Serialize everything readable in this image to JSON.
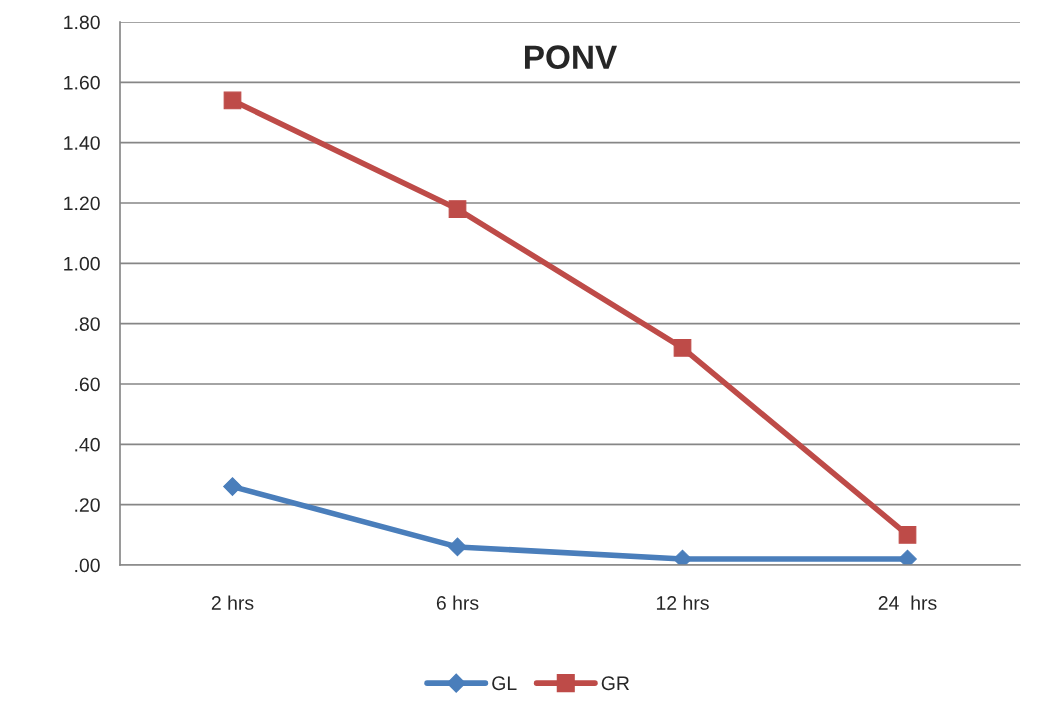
{
  "chart_data": {
    "type": "line",
    "title": "PONV",
    "categories": [
      "2 hrs",
      "6 hrs",
      "12 hrs",
      "24  hrs"
    ],
    "series": [
      {
        "name": "GL",
        "color": "#4a7ebb",
        "marker": "diamond",
        "values": [
          0.26,
          0.06,
          0.02,
          0.02
        ]
      },
      {
        "name": "GR",
        "color": "#be4b48",
        "marker": "square",
        "values": [
          1.54,
          1.18,
          0.72,
          0.1
        ]
      }
    ],
    "ylim": [
      0,
      1.8
    ],
    "yticks": [
      {
        "value": 0,
        "label": ".00"
      },
      {
        "value": 0.2,
        "label": ".20"
      },
      {
        "value": 0.4,
        "label": ".40"
      },
      {
        "value": 0.6,
        "label": ".60"
      },
      {
        "value": 0.8,
        "label": ".80"
      },
      {
        "value": 1.0,
        "label": "1.00"
      },
      {
        "value": 1.2,
        "label": "1.20"
      },
      {
        "value": 1.4,
        "label": "1.40"
      },
      {
        "value": 1.6,
        "label": "1.60"
      },
      {
        "value": 1.8,
        "label": "1.80"
      }
    ],
    "grid": "y",
    "legend": "bottom"
  }
}
